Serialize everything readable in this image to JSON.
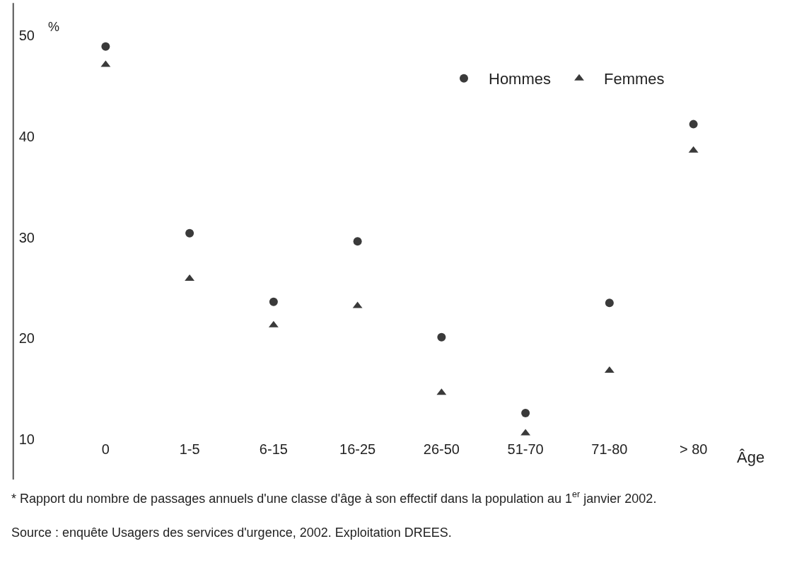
{
  "chart_data": {
    "type": "scatter",
    "ylabel": "%",
    "xlabel": "Âge",
    "categories": [
      "0",
      "1-5",
      "6-15",
      "16-25",
      "26-50",
      "51-70",
      "71-80",
      "> 80"
    ],
    "series": [
      {
        "name": "Hommes",
        "color": "#3a3a3a",
        "marker": "circle",
        "values": [
          48.9,
          30.4,
          23.6,
          29.6,
          20.1,
          12.6,
          23.5,
          41.2
        ]
      },
      {
        "name": "Femmes",
        "color": "#3a3a3a",
        "marker": "triangle",
        "values": [
          47.1,
          25.9,
          21.3,
          23.2,
          14.6,
          10.6,
          16.8,
          38.6
        ]
      }
    ],
    "ylim": [
      10,
      50
    ],
    "yticks": [
      10,
      20,
      30,
      40,
      50
    ],
    "legend": "top right",
    "annotations": [
      "* Rapport du nombre de passages annuels d'une classe d'âge à son effectif dans la population au 1$^{er}$ janvier 2002.",
      "Source : enquête Usagers des services d'urgence, 2002. Exploitation DREES."
    ]
  }
}
